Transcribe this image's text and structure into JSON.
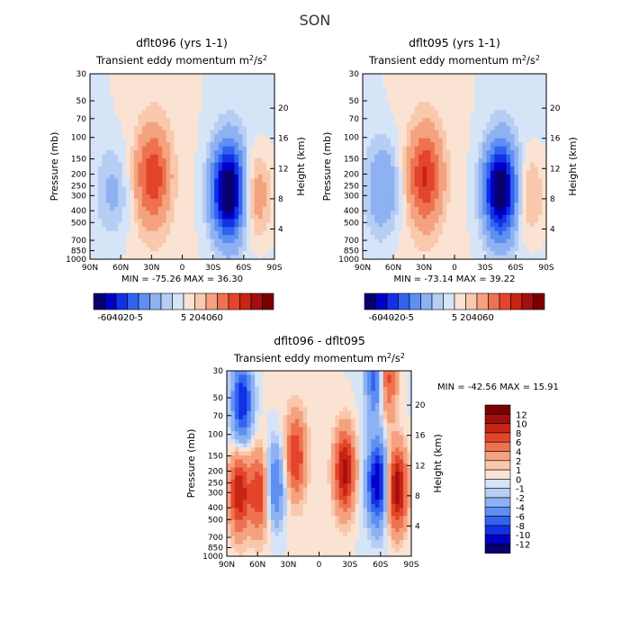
{
  "figure_title": "SON",
  "chart_data": [
    {
      "type": "heatmap",
      "title": "dflt096 (yrs 1-1)",
      "subtitle": "Transient eddy momentum",
      "units_base": "m",
      "units_exp1": "2",
      "units_mid": "/s",
      "units_exp2": "2",
      "xlabel": "",
      "ylabel": "Pressure (mb)",
      "y2label": "Height (km)",
      "x_ticks": [
        "90N",
        "60N",
        "30N",
        "0",
        "30S",
        "60S",
        "90S"
      ],
      "y_ticks": [
        "30",
        "50",
        "70",
        "100",
        "150",
        "200",
        "250",
        "300",
        "400",
        "500",
        "700",
        "850",
        "1000"
      ],
      "y2_ticks": [
        "20",
        "16",
        "12",
        "8",
        "4"
      ],
      "min_text": "MIN = -75.26",
      "max_text": "MAX = 36.30",
      "colorbar": [
        "-60",
        "-40",
        "-20",
        "-5",
        "5",
        "20",
        "40",
        "60"
      ],
      "features": [
        {
          "lat": 29,
          "p": 210,
          "value": 36.3
        },
        {
          "lat": -45,
          "p": 275,
          "value": -75.3
        },
        {
          "lat": -72,
          "p": 300,
          "value": 18
        },
        {
          "lat": 67,
          "p": 280,
          "value": -12
        }
      ]
    },
    {
      "type": "heatmap",
      "title": "dflt095 (yrs 1-1)",
      "subtitle": "Transient eddy momentum",
      "units_base": "m",
      "units_exp1": "2",
      "units_mid": "/s",
      "units_exp2": "2",
      "xlabel": "",
      "ylabel": "Pressure (mb)",
      "y2label": "Height (km)",
      "x_ticks": [
        "90N",
        "60N",
        "30N",
        "0",
        "30S",
        "60S",
        "90S"
      ],
      "y_ticks": [
        "30",
        "50",
        "70",
        "100",
        "150",
        "200",
        "250",
        "300",
        "400",
        "500",
        "700",
        "850",
        "1000"
      ],
      "y2_ticks": [
        "20",
        "16",
        "12",
        "8",
        "4"
      ],
      "min_text": "MIN = -73.14",
      "max_text": "MAX = 39.22",
      "colorbar": [
        "-60",
        "-40",
        "-20",
        "-5",
        "5",
        "20",
        "40",
        "60"
      ],
      "features": [
        {
          "lat": 29,
          "p": 210,
          "value": 39.2
        },
        {
          "lat": -45,
          "p": 270,
          "value": -73.1
        },
        {
          "lat": -73,
          "p": 300,
          "value": 14
        },
        {
          "lat": 70,
          "p": 260,
          "value": -20
        }
      ]
    },
    {
      "type": "heatmap",
      "title": "dflt096 - dflt095",
      "subtitle": "Transient eddy momentum",
      "units_base": "m",
      "units_exp1": "2",
      "units_mid": "/s",
      "units_exp2": "2",
      "xlabel": "",
      "ylabel": "Pressure (mb)",
      "y2label": "Height (km)",
      "x_ticks": [
        "90N",
        "60N",
        "30N",
        "0",
        "30S",
        "60S",
        "90S"
      ],
      "y_ticks": [
        "30",
        "50",
        "70",
        "100",
        "150",
        "200",
        "250",
        "300",
        "400",
        "500",
        "700",
        "850",
        "1000"
      ],
      "y2_ticks": [
        "20",
        "16",
        "12",
        "8",
        "4"
      ],
      "min_text": "MIN = -42.56",
      "max_text": "MAX = 15.91",
      "colorbar": [
        "12",
        "10",
        "8",
        "6",
        "4",
        "2",
        "1",
        "0",
        "-1",
        "-2",
        "-4",
        "-6",
        "-8",
        "-10",
        "-12"
      ],
      "features": [
        {
          "lat": 75,
          "p": 55,
          "value": -10
        },
        {
          "lat": 78,
          "p": 300,
          "value": 10
        },
        {
          "lat": 58,
          "p": 300,
          "value": 8
        },
        {
          "lat": 43,
          "p": 260,
          "value": -7
        },
        {
          "lat": 23,
          "p": 150,
          "value": 8
        },
        {
          "lat": -25,
          "p": 200,
          "value": 11
        },
        {
          "lat": -57,
          "p": 250,
          "value": -12
        },
        {
          "lat": -76,
          "p": 280,
          "value": 12
        },
        {
          "lat": -57,
          "p": 35,
          "value": -10
        },
        {
          "lat": -65,
          "p": 35,
          "value": 10
        }
      ]
    }
  ]
}
